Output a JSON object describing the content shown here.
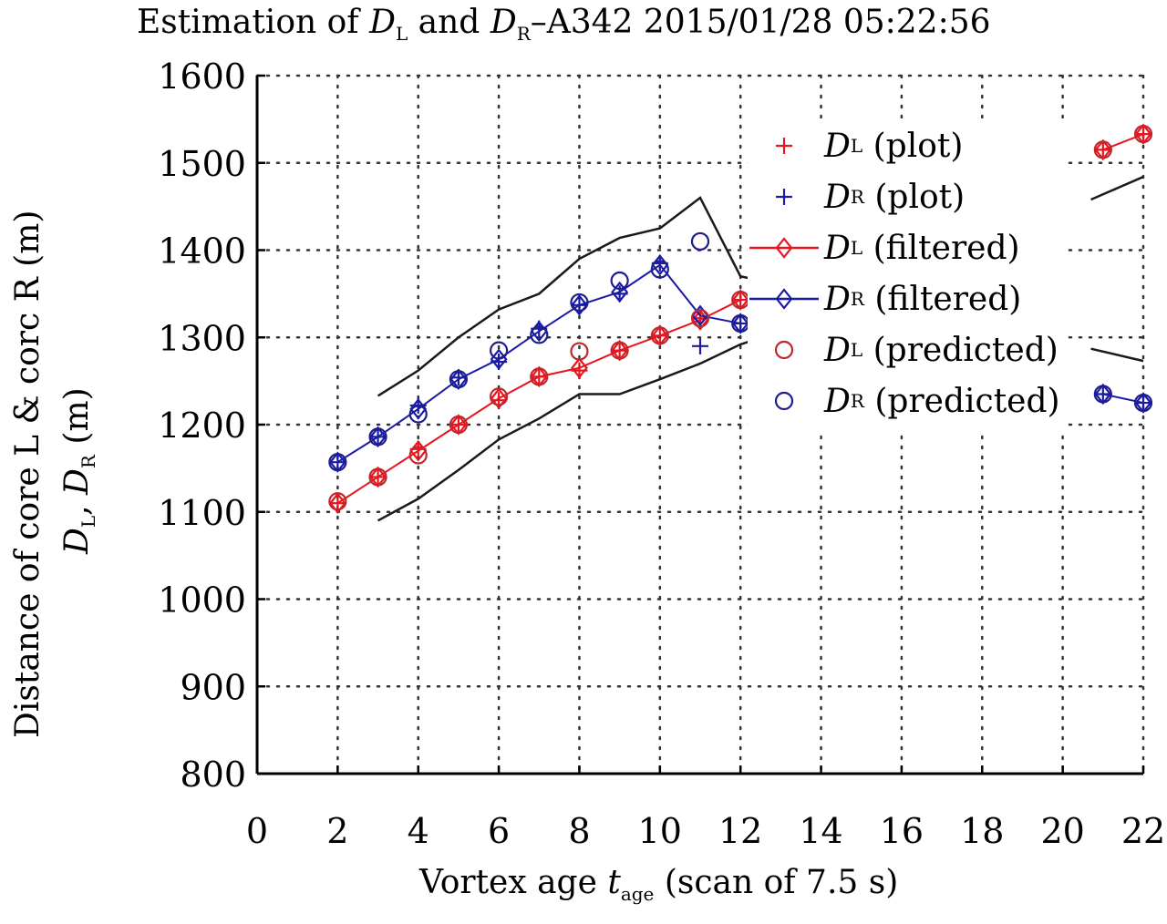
{
  "chart_data": {
    "type": "line",
    "title": {
      "prefix": "Estimation of ",
      "var1": "D",
      "var1_sub": "L",
      "mid": " and ",
      "var2": "D",
      "var2_sub": "R",
      "suffix": "–A342 2015/01/28 05:22:56"
    },
    "xlabel": {
      "prefix": "Vortex age ",
      "var": "t",
      "var_sub": "age",
      "suffix": " (scan of 7.5 s)"
    },
    "ylabel_outer": "Distance of core L & corc R (m)",
    "ylabel_inner": {
      "v1": "D",
      "v1_sub": "L",
      "sep": ", ",
      "v2": "D",
      "v2_sub": "R",
      "suffix": " (m)"
    },
    "xlim": [
      0,
      22
    ],
    "ylim": [
      800,
      1600
    ],
    "xticks": [
      "0",
      "2",
      "4",
      "6",
      "8",
      "10",
      "12",
      "14",
      "16",
      "18",
      "20",
      "22"
    ],
    "yticks": [
      "800",
      "900",
      "1000",
      "1100",
      "1200",
      "1300",
      "1400",
      "1500",
      "1600"
    ],
    "grid": "dotted",
    "legend_position": "top-right",
    "colors": {
      "dl": "#e8141e",
      "dr": "#1a1aa8",
      "dl_pred": "#c0282d",
      "dr_pred": "#1e1e8c",
      "bound": "#1a1a1a"
    },
    "series": [
      {
        "name": "DL (plot)",
        "legend_var": "D",
        "legend_sub": "L",
        "legend_text": " (plot)",
        "marker": "plus",
        "color": "dl",
        "x": [
          2,
          3,
          4,
          5,
          6,
          7,
          8,
          9,
          10,
          11,
          12,
          21,
          22
        ],
        "y": [
          1110,
          1140,
          1172,
          1200,
          1228,
          1255,
          1262,
          1285,
          1302,
          1322,
          1343,
          1515,
          1533
        ]
      },
      {
        "name": "DR (plot)",
        "legend_var": "D",
        "legend_sub": "R",
        "legend_text": " (plot)",
        "marker": "plus",
        "color": "dr",
        "x": [
          2,
          3,
          4,
          5,
          6,
          7,
          8,
          9,
          10,
          11,
          12,
          21,
          22
        ],
        "y": [
          1157,
          1186,
          1222,
          1254,
          1272,
          1310,
          1337,
          1350,
          1385,
          1290,
          1316,
          1235,
          1225
        ]
      },
      {
        "name": "DL (filtered)",
        "legend_var": "D",
        "legend_sub": "L",
        "legend_text": " (filtered)",
        "marker": "diamond-line",
        "color": "dl",
        "x": [
          2,
          3,
          4,
          5,
          6,
          7,
          8,
          9,
          10,
          11,
          12,
          21,
          22
        ],
        "y": [
          1110,
          1140,
          1170,
          1200,
          1230,
          1255,
          1265,
          1285,
          1302,
          1320,
          1343,
          1515,
          1533
        ]
      },
      {
        "name": "DR (filtered)",
        "legend_var": "D",
        "legend_sub": "R",
        "legend_text": " (filtered)",
        "marker": "diamond-line",
        "color": "dr",
        "x": [
          2,
          3,
          4,
          5,
          6,
          7,
          8,
          9,
          10,
          11,
          12,
          21,
          22
        ],
        "y": [
          1157,
          1186,
          1218,
          1252,
          1275,
          1307,
          1337,
          1352,
          1383,
          1325,
          1316,
          1235,
          1225
        ]
      },
      {
        "name": "DL (predicted)",
        "legend_var": "D",
        "legend_sub": "L",
        "legend_text": " (predicted)",
        "marker": "circle",
        "color": "dl_pred",
        "x": [
          2,
          3,
          4,
          5,
          6,
          7,
          8,
          9,
          10,
          11,
          12,
          21,
          22
        ],
        "y": [
          1112,
          1140,
          1165,
          1200,
          1232,
          1255,
          1284,
          1285,
          1302,
          1322,
          1343,
          1515,
          1533
        ]
      },
      {
        "name": "DR (predicted)",
        "legend_var": "D",
        "legend_sub": "R",
        "legend_text": " (predicted)",
        "marker": "circle",
        "color": "dr_pred",
        "x": [
          2,
          3,
          4,
          5,
          6,
          7,
          8,
          9,
          10,
          11,
          12,
          21,
          22
        ],
        "y": [
          1157,
          1186,
          1212,
          1252,
          1285,
          1303,
          1340,
          1365,
          1378,
          1410,
          1316,
          1235,
          1225
        ]
      }
    ],
    "bounds": [
      {
        "name": "upper bound",
        "segments": [
          {
            "x": [
              3,
              4,
              5,
              6,
              7,
              8,
              9,
              10,
              11,
              12,
              12.2
            ],
            "y": [
              1233,
              1262,
              1300,
              1332,
              1350,
              1390,
              1414,
              1425,
              1460,
              1370,
              1368
            ]
          },
          {
            "x": [
              20.7,
              22
            ],
            "y": [
              1458,
              1484
            ]
          }
        ]
      },
      {
        "name": "lower bound",
        "segments": [
          {
            "x": [
              3,
              4,
              5,
              6,
              7,
              8,
              9,
              10,
              11,
              12,
              12.2
            ],
            "y": [
              1090,
              1115,
              1148,
              1183,
              1207,
              1235,
              1235,
              1252,
              1270,
              1292,
              1295
            ]
          },
          {
            "x": [
              20.7,
              22
            ],
            "y": [
              1287,
              1273
            ]
          }
        ]
      }
    ]
  }
}
